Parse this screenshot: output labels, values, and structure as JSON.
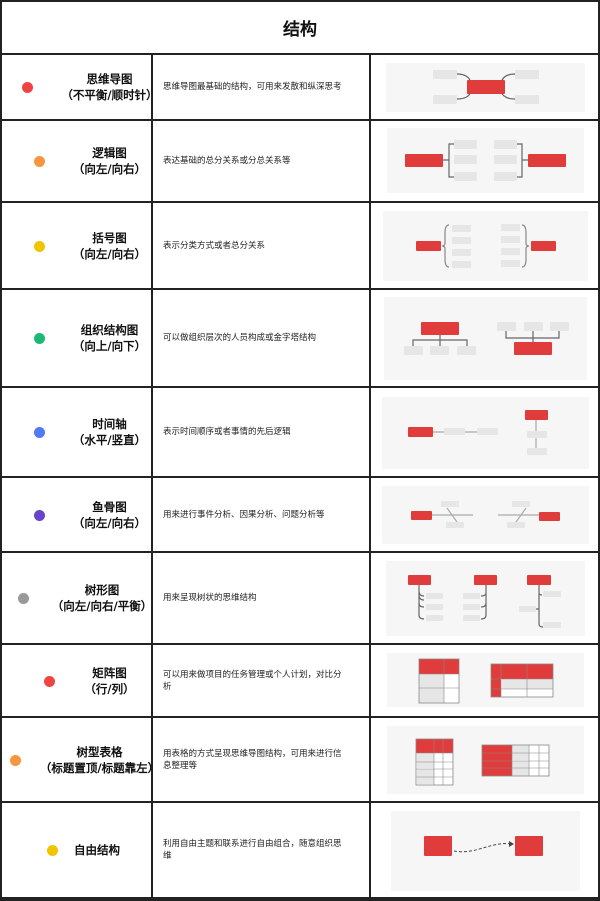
{
  "title": "结构",
  "colors": {
    "accent": "#e03c3c",
    "box": "#e6e6e6",
    "panel": "#f6f6f6",
    "line": "#666666"
  },
  "rows": [
    {
      "name": "思维导图",
      "sub": "（不平衡/顺时针）",
      "desc": "思维导图最基础的结构，可用来发散和纵深思考",
      "dot": "#f04444",
      "diagram": "mindmap"
    },
    {
      "name": "逻辑图",
      "sub": "（向左/向右）",
      "desc": "表达基础的总分关系或分总关系等",
      "dot": "#f7963e",
      "diagram": "logic"
    },
    {
      "name": "括号图",
      "sub": "（向左/向右）",
      "desc": "表示分类方式或者总分关系",
      "dot": "#f0c400",
      "diagram": "brace"
    },
    {
      "name": "组织结构图",
      "sub": "（向上/向下）",
      "desc": "可以做组织层次的人员构成或金字塔结构",
      "dot": "#1db974",
      "diagram": "org"
    },
    {
      "name": "时间轴",
      "sub": "（水平/竖直）",
      "desc": "表示时间顺序或者事情的先后逻辑",
      "dot": "#4f7bf7",
      "diagram": "timeline"
    },
    {
      "name": "鱼骨图",
      "sub": "（向左/向右）",
      "desc": "用来进行事件分析、因果分析、问题分析等",
      "dot": "#6644cc",
      "diagram": "fishbone"
    },
    {
      "name": "树形图",
      "sub": "（向左/向右/平衡）",
      "desc": "用来呈现树状的思维结构",
      "dot": "#999999",
      "diagram": "tree"
    },
    {
      "name": "矩阵图",
      "sub": "（行/列）",
      "desc": "可以用来做项目的任务管理或个人计划，对比分析",
      "dot": "#f04444",
      "diagram": "matrix"
    },
    {
      "name": "树型表格",
      "sub": "（标题置顶/标题靠左）",
      "desc": "用表格的方式呈现思维导图结构，可用来进行信息整理等",
      "dot": "#f7963e",
      "diagram": "treetable"
    },
    {
      "name": "自由结构",
      "sub": "",
      "desc": "利用自由主题和联系进行自由组合，随意组织思维",
      "dot": "#f0c400",
      "diagram": "free"
    }
  ]
}
